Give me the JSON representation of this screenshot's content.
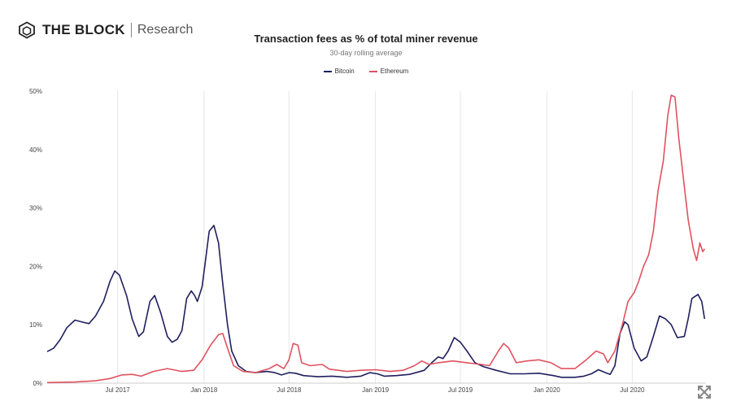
{
  "brand": {
    "name": "THE BLOCK",
    "section": "Research"
  },
  "chart_data": {
    "type": "line",
    "title": "Transaction fees as % of total miner revenue",
    "subtitle": "30-day rolling average",
    "xlabel": "",
    "ylabel": "",
    "x_ticks": [
      "Jul 2017",
      "Jan 2018",
      "Jul 2018",
      "Jan 2019",
      "Jul 2019",
      "Jan 2020",
      "Jul 2020"
    ],
    "y_ticks": [
      "0%",
      "10%",
      "20%",
      "30%",
      "40%",
      "50%"
    ],
    "ylim": [
      0,
      50
    ],
    "xlim": [
      "2017-02-01",
      "2020-12-05"
    ],
    "grid": "vertical",
    "legend_position": "top-center",
    "series": [
      {
        "name": "Bitcoin",
        "color": "#1f1f5e",
        "points": [
          [
            "2017-02-01",
            5.4
          ],
          [
            "2017-02-15",
            6.0
          ],
          [
            "2017-03-01",
            7.5
          ],
          [
            "2017-03-15",
            9.5
          ],
          [
            "2017-04-01",
            10.8
          ],
          [
            "2017-04-15",
            10.5
          ],
          [
            "2017-05-01",
            10.2
          ],
          [
            "2017-05-15",
            11.5
          ],
          [
            "2017-06-01",
            14.0
          ],
          [
            "2017-06-15",
            17.5
          ],
          [
            "2017-06-25",
            19.2
          ],
          [
            "2017-07-05",
            18.5
          ],
          [
            "2017-07-20",
            15.0
          ],
          [
            "2017-08-01",
            11.0
          ],
          [
            "2017-08-15",
            8.0
          ],
          [
            "2017-08-25",
            8.8
          ],
          [
            "2017-09-08",
            14.0
          ],
          [
            "2017-09-18",
            15.0
          ],
          [
            "2017-10-01",
            12.0
          ],
          [
            "2017-10-15",
            8.0
          ],
          [
            "2017-10-25",
            7.0
          ],
          [
            "2017-11-05",
            7.5
          ],
          [
            "2017-11-15",
            9.0
          ],
          [
            "2017-11-25",
            14.5
          ],
          [
            "2017-12-05",
            15.8
          ],
          [
            "2017-12-12",
            15.0
          ],
          [
            "2017-12-18",
            14.0
          ],
          [
            "2017-12-28",
            16.5
          ],
          [
            "2018-01-05",
            21.5
          ],
          [
            "2018-01-12",
            26.0
          ],
          [
            "2018-01-22",
            27.0
          ],
          [
            "2018-02-01",
            24.0
          ],
          [
            "2018-02-10",
            17.0
          ],
          [
            "2018-02-20",
            10.0
          ],
          [
            "2018-03-01",
            5.5
          ],
          [
            "2018-03-15",
            3.0
          ],
          [
            "2018-04-01",
            2.0
          ],
          [
            "2018-04-20",
            1.8
          ],
          [
            "2018-05-15",
            2.0
          ],
          [
            "2018-06-01",
            1.8
          ],
          [
            "2018-06-15",
            1.4
          ],
          [
            "2018-07-01",
            1.8
          ],
          [
            "2018-07-15",
            1.7
          ],
          [
            "2018-08-01",
            1.3
          ],
          [
            "2018-09-01",
            1.1
          ],
          [
            "2018-10-01",
            1.2
          ],
          [
            "2018-11-01",
            1.0
          ],
          [
            "2018-12-01",
            1.2
          ],
          [
            "2018-12-20",
            1.8
          ],
          [
            "2019-01-05",
            1.6
          ],
          [
            "2019-01-20",
            1.2
          ],
          [
            "2019-02-15",
            1.3
          ],
          [
            "2019-03-15",
            1.5
          ],
          [
            "2019-04-15",
            2.2
          ],
          [
            "2019-05-01",
            3.5
          ],
          [
            "2019-05-15",
            4.5
          ],
          [
            "2019-05-25",
            4.2
          ],
          [
            "2019-06-05",
            5.5
          ],
          [
            "2019-06-18",
            7.8
          ],
          [
            "2019-07-01",
            7.0
          ],
          [
            "2019-07-15",
            5.5
          ],
          [
            "2019-08-01",
            3.5
          ],
          [
            "2019-08-20",
            2.8
          ],
          [
            "2019-09-15",
            2.2
          ],
          [
            "2019-10-15",
            1.6
          ],
          [
            "2019-11-15",
            1.6
          ],
          [
            "2019-12-15",
            1.7
          ],
          [
            "2020-01-15",
            1.3
          ],
          [
            "2020-02-01",
            1.0
          ],
          [
            "2020-03-01",
            1.0
          ],
          [
            "2020-03-20",
            1.2
          ],
          [
            "2020-04-05",
            1.6
          ],
          [
            "2020-04-20",
            2.3
          ],
          [
            "2020-05-05",
            1.8
          ],
          [
            "2020-05-15",
            1.5
          ],
          [
            "2020-05-25",
            3.0
          ],
          [
            "2020-06-05",
            8.5
          ],
          [
            "2020-06-15",
            10.5
          ],
          [
            "2020-06-22",
            10.0
          ],
          [
            "2020-07-05",
            6.0
          ],
          [
            "2020-07-20",
            3.8
          ],
          [
            "2020-08-01",
            4.5
          ],
          [
            "2020-08-15",
            8.0
          ],
          [
            "2020-08-28",
            11.5
          ],
          [
            "2020-09-10",
            11.0
          ],
          [
            "2020-09-22",
            10.0
          ],
          [
            "2020-10-05",
            7.8
          ],
          [
            "2020-10-20",
            8.0
          ],
          [
            "2020-10-28",
            11.0
          ],
          [
            "2020-11-05",
            14.5
          ],
          [
            "2020-11-18",
            15.2
          ],
          [
            "2020-11-26",
            14.0
          ],
          [
            "2020-12-02",
            11.0
          ]
        ]
      },
      {
        "name": "Ethereum",
        "color": "#e05260",
        "points": [
          [
            "2017-02-01",
            0.1
          ],
          [
            "2017-04-01",
            0.2
          ],
          [
            "2017-05-15",
            0.4
          ],
          [
            "2017-06-15",
            0.8
          ],
          [
            "2017-07-10",
            1.4
          ],
          [
            "2017-08-01",
            1.5
          ],
          [
            "2017-08-20",
            1.2
          ],
          [
            "2017-09-15",
            2.0
          ],
          [
            "2017-10-15",
            2.5
          ],
          [
            "2017-11-15",
            2.0
          ],
          [
            "2017-12-10",
            2.2
          ],
          [
            "2017-12-28",
            4.0
          ],
          [
            "2018-01-15",
            6.5
          ],
          [
            "2018-02-01",
            8.3
          ],
          [
            "2018-02-10",
            8.5
          ],
          [
            "2018-02-20",
            6.0
          ],
          [
            "2018-03-05",
            3.0
          ],
          [
            "2018-03-25",
            2.0
          ],
          [
            "2018-04-20",
            1.8
          ],
          [
            "2018-05-20",
            2.5
          ],
          [
            "2018-06-05",
            3.2
          ],
          [
            "2018-06-20",
            2.5
          ],
          [
            "2018-07-01",
            4.0
          ],
          [
            "2018-07-10",
            6.8
          ],
          [
            "2018-07-20",
            6.5
          ],
          [
            "2018-07-28",
            3.5
          ],
          [
            "2018-08-15",
            3.0
          ],
          [
            "2018-09-10",
            3.2
          ],
          [
            "2018-09-25",
            2.4
          ],
          [
            "2018-11-01",
            2.0
          ],
          [
            "2018-12-01",
            2.2
          ],
          [
            "2019-01-01",
            2.3
          ],
          [
            "2019-02-01",
            2.0
          ],
          [
            "2019-03-01",
            2.2
          ],
          [
            "2019-03-25",
            3.0
          ],
          [
            "2019-04-10",
            3.8
          ],
          [
            "2019-04-25",
            3.2
          ],
          [
            "2019-05-15",
            3.5
          ],
          [
            "2019-06-15",
            3.8
          ],
          [
            "2019-07-15",
            3.5
          ],
          [
            "2019-08-15",
            3.2
          ],
          [
            "2019-09-01",
            3.0
          ],
          [
            "2019-09-20",
            5.5
          ],
          [
            "2019-10-01",
            6.8
          ],
          [
            "2019-10-12",
            6.0
          ],
          [
            "2019-10-28",
            3.5
          ],
          [
            "2019-11-20",
            3.8
          ],
          [
            "2019-12-15",
            4.0
          ],
          [
            "2020-01-10",
            3.5
          ],
          [
            "2020-02-01",
            2.5
          ],
          [
            "2020-03-01",
            2.5
          ],
          [
            "2020-03-25",
            4.0
          ],
          [
            "2020-04-15",
            5.5
          ],
          [
            "2020-05-01",
            5.0
          ],
          [
            "2020-05-10",
            3.5
          ],
          [
            "2020-05-25",
            5.5
          ],
          [
            "2020-06-10",
            10.0
          ],
          [
            "2020-06-22",
            14.0
          ],
          [
            "2020-07-05",
            15.5
          ],
          [
            "2020-07-15",
            17.5
          ],
          [
            "2020-07-25",
            20.0
          ],
          [
            "2020-08-05",
            22.0
          ],
          [
            "2020-08-15",
            26.0
          ],
          [
            "2020-08-25",
            33.0
          ],
          [
            "2020-09-05",
            38.0
          ],
          [
            "2020-09-15",
            46.0
          ],
          [
            "2020-09-22",
            49.3
          ],
          [
            "2020-09-30",
            49.0
          ],
          [
            "2020-10-08",
            42.0
          ],
          [
            "2020-10-18",
            35.0
          ],
          [
            "2020-10-28",
            28.0
          ],
          [
            "2020-11-08",
            23.0
          ],
          [
            "2020-11-15",
            21.0
          ],
          [
            "2020-11-22",
            24.0
          ],
          [
            "2020-11-28",
            22.5
          ],
          [
            "2020-12-02",
            23.0
          ]
        ]
      }
    ]
  }
}
